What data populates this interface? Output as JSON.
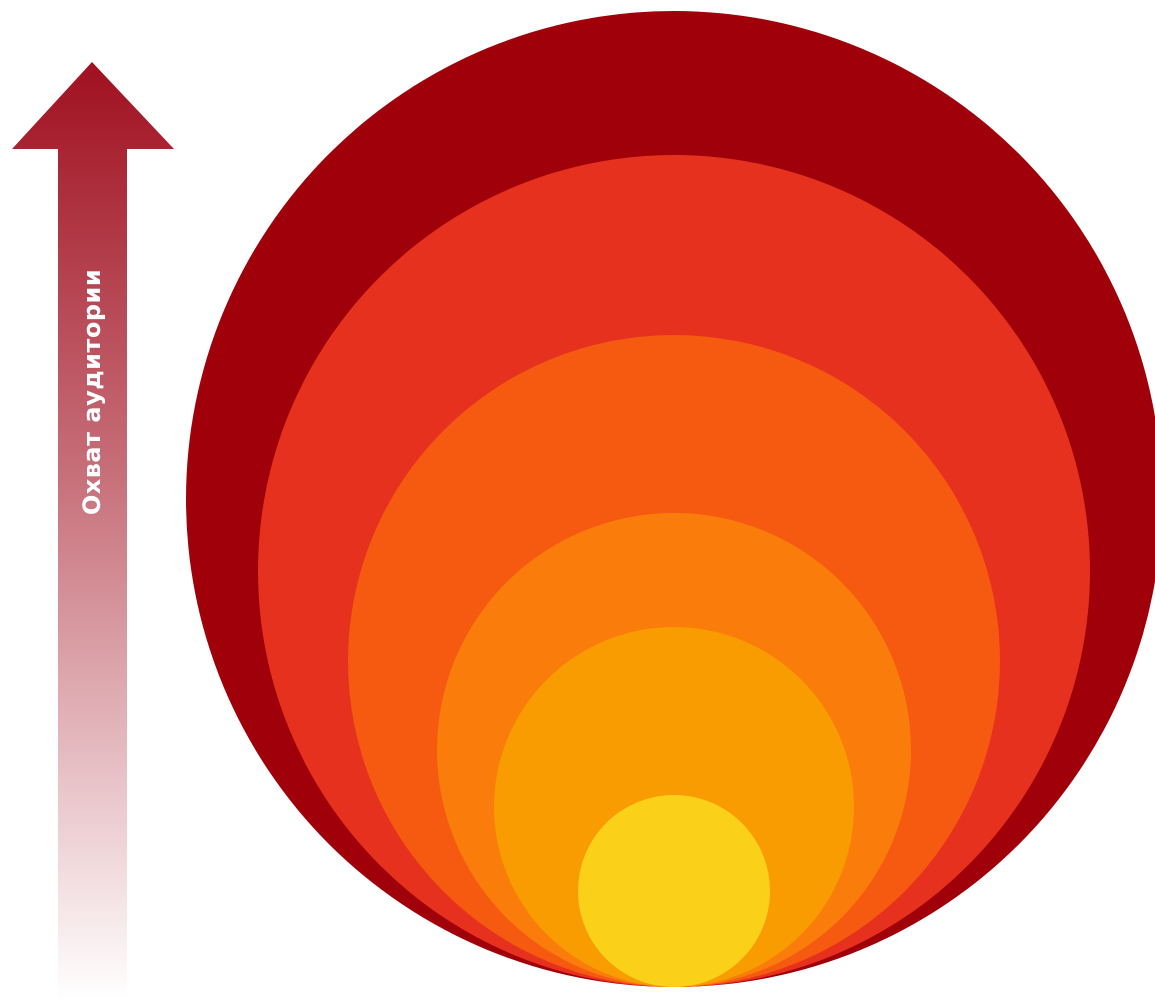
{
  "arrow": {
    "label": "Охват аудитории",
    "color_top": "#A01020",
    "color_bottom": "#FFFFFF",
    "label_color": "#FFFFFF"
  },
  "circles": [
    {
      "name": "circle-level-1",
      "color": "#A0000A"
    },
    {
      "name": "circle-level-2",
      "color": "#E6311E"
    },
    {
      "name": "circle-level-3",
      "color": "#F55A10"
    },
    {
      "name": "circle-level-4",
      "color": "#FA7D0C"
    },
    {
      "name": "circle-level-5",
      "color": "#F89C02"
    },
    {
      "name": "circle-level-6",
      "color": "#FAD118"
    }
  ]
}
